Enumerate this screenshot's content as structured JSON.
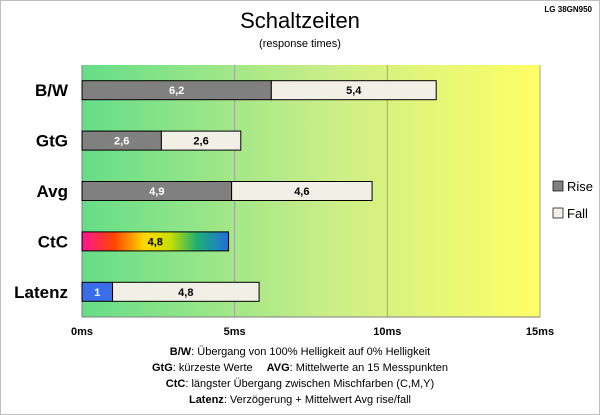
{
  "chart_data": {
    "type": "bar",
    "orientation": "horizontal",
    "stacked": true,
    "title": "Schaltzeiten",
    "subtitle": "(response times)",
    "model": "LG 38GN950",
    "categories": [
      "B/W",
      "GtG",
      "Avg",
      "CtC",
      "Latenz"
    ],
    "series": [
      {
        "name": "Rise",
        "values": [
          6.2,
          2.6,
          4.9,
          null,
          null
        ]
      },
      {
        "name": "Fall",
        "values": [
          5.4,
          2.6,
          4.6,
          null,
          null
        ]
      }
    ],
    "ctc": {
      "value": 4.8,
      "label": "4,8"
    },
    "latenz": {
      "delay": 1,
      "delay_label": "1",
      "avg": 4.8,
      "avg_label": "4,8"
    },
    "value_labels": {
      "B/W": [
        "6,2",
        "5,4"
      ],
      "GtG": [
        "2,6",
        "2,6"
      ],
      "Avg": [
        "4,9",
        "4,6"
      ]
    },
    "xlim": [
      0,
      15
    ],
    "xticks": [
      0,
      5,
      10,
      15
    ],
    "xtick_labels": [
      "0ms",
      "5ms",
      "10ms",
      "15ms"
    ],
    "grid": true,
    "background_gradient": [
      "#66dd88",
      "#ccee88",
      "#ffff66"
    ],
    "legend_position": "right",
    "colors": {
      "rise": "#808080",
      "fall": "#f2f0e6",
      "latenz_delay": "#3a6ee8"
    },
    "notes": [
      {
        "key": "B/W",
        "text": ":  Übergang von 100% Helligkeit auf 0% Helligkeit"
      },
      {
        "key": "GtG",
        "text": ": kürzeste  Werte",
        "key2": "AVG",
        "text2": ": Mittelwerte  an 15 Messpunkten"
      },
      {
        "key": "CtC",
        "text": ": längster Übergang  zwischen Mischfarben  (C,M,Y)"
      },
      {
        "key": "Latenz",
        "text": ": Verzögerung  + Mittelwert Avg rise/fall"
      }
    ]
  }
}
